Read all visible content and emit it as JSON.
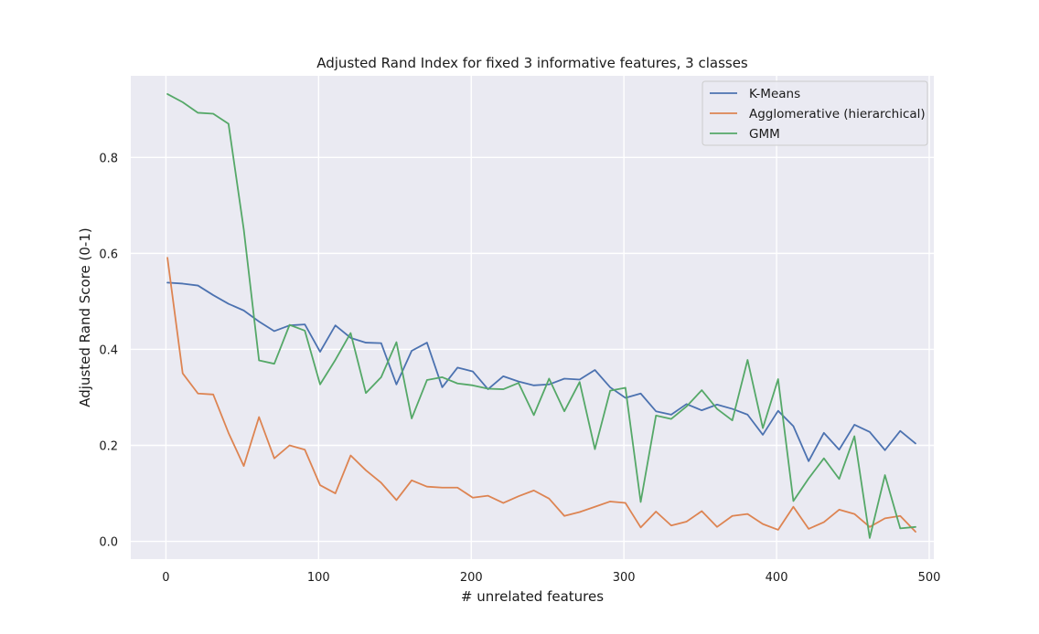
{
  "chart_data": {
    "type": "line",
    "title": "Adjusted Rand Index for fixed 3 informative features, 3 classes",
    "xlabel": "# unrelated features",
    "ylabel": "Adjusted Rand Score (0-1)",
    "xlim": [
      -23,
      503
    ],
    "ylim": [
      -0.037,
      0.97
    ],
    "xticks": [
      0,
      100,
      200,
      300,
      400,
      500
    ],
    "yticks": [
      0.0,
      0.2,
      0.4,
      0.6,
      0.8
    ],
    "xtick_labels": [
      "0",
      "100",
      "200",
      "300",
      "400",
      "500"
    ],
    "ytick_labels": [
      "0.0",
      "0.2",
      "0.4",
      "0.6",
      "0.8"
    ],
    "grid": true,
    "legend_position": "top-right",
    "background_color": "#eaeaf2",
    "x": [
      1,
      11,
      21,
      31,
      41,
      51,
      61,
      71,
      81,
      91,
      101,
      111,
      121,
      131,
      141,
      151,
      161,
      171,
      181,
      191,
      201,
      211,
      221,
      231,
      241,
      251,
      261,
      271,
      281,
      291,
      301,
      311,
      321,
      331,
      341,
      351,
      361,
      371,
      381,
      391,
      401,
      411,
      421,
      431,
      441,
      451,
      461,
      471,
      481,
      491
    ],
    "series": [
      {
        "name": "K-Means",
        "color": "#4c72b0",
        "values": [
          0.539,
          0.537,
          0.533,
          0.513,
          0.495,
          0.481,
          0.458,
          0.438,
          0.45,
          0.452,
          0.395,
          0.45,
          0.424,
          0.414,
          0.413,
          0.327,
          0.397,
          0.414,
          0.321,
          0.362,
          0.354,
          0.317,
          0.344,
          0.333,
          0.325,
          0.327,
          0.339,
          0.337,
          0.357,
          0.321,
          0.299,
          0.308,
          0.271,
          0.264,
          0.286,
          0.273,
          0.285,
          0.276,
          0.264,
          0.222,
          0.272,
          0.24,
          0.167,
          0.226,
          0.191,
          0.243,
          0.228,
          0.19,
          0.23,
          0.204
        ]
      },
      {
        "name": "Agglomerative (hierarchical)",
        "color": "#dd8452",
        "values": [
          0.591,
          0.35,
          0.308,
          0.306,
          0.226,
          0.157,
          0.259,
          0.173,
          0.2,
          0.191,
          0.117,
          0.1,
          0.179,
          0.148,
          0.122,
          0.086,
          0.127,
          0.114,
          0.112,
          0.112,
          0.091,
          0.095,
          0.08,
          0.094,
          0.106,
          0.089,
          0.053,
          0.061,
          0.072,
          0.083,
          0.08,
          0.029,
          0.062,
          0.033,
          0.041,
          0.063,
          0.03,
          0.053,
          0.057,
          0.036,
          0.024,
          0.072,
          0.026,
          0.04,
          0.066,
          0.057,
          0.03,
          0.048,
          0.053,
          0.02
        ]
      },
      {
        "name": "GMM",
        "color": "#55a868",
        "values": [
          0.932,
          0.915,
          0.893,
          0.891,
          0.87,
          0.65,
          0.377,
          0.37,
          0.451,
          0.439,
          0.327,
          0.378,
          0.434,
          0.309,
          0.342,
          0.415,
          0.256,
          0.336,
          0.342,
          0.329,
          0.325,
          0.318,
          0.317,
          0.33,
          0.263,
          0.339,
          0.271,
          0.332,
          0.192,
          0.314,
          0.32,
          0.082,
          0.262,
          0.255,
          0.281,
          0.315,
          0.276,
          0.252,
          0.378,
          0.236,
          0.338,
          0.084,
          0.131,
          0.173,
          0.13,
          0.219,
          0.007,
          0.138,
          0.027,
          0.03
        ]
      }
    ]
  }
}
